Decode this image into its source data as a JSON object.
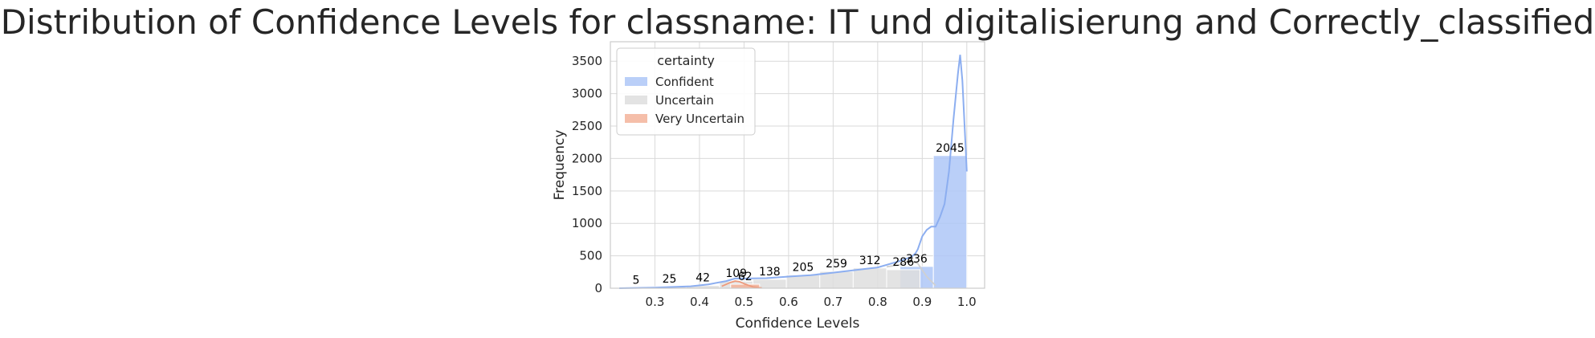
{
  "chart_data": {
    "type": "bar",
    "title": "Distribution of Confidence Levels for classname: IT und digitalisierung and Correctly_classified",
    "xlabel": "Confidence Levels",
    "ylabel": "Frequency",
    "xlim": [
      0.2,
      1.04
    ],
    "ylim": [
      0,
      3800
    ],
    "x_ticks": [
      0.3,
      0.4,
      0.5,
      0.6,
      0.7,
      0.8,
      0.9,
      1.0
    ],
    "x_tick_labels": [
      "0.3",
      "0.4",
      "0.5",
      "0.6",
      "0.7",
      "0.8",
      "0.9",
      "1.0"
    ],
    "y_ticks": [
      0,
      500,
      1000,
      1500,
      2000,
      2500,
      3000,
      3500
    ],
    "y_tick_labels": [
      "0",
      "500",
      "1000",
      "1500",
      "2000",
      "2500",
      "3000",
      "3500"
    ],
    "grid": true,
    "legend": {
      "title": "certainty",
      "placement": "top-left",
      "entries": [
        "Confident",
        "Uncertain",
        "Very Uncertain"
      ]
    },
    "colors": {
      "Confident": "#aec7f7",
      "Uncertain": "#dedede",
      "Very Uncertain": "#f3b39a",
      "kde_line": "#8caef0",
      "uncertain_kde": "#d0d0d0",
      "very_uncertain_kde": "#ee9a7c"
    },
    "series": [
      {
        "name": "Confident",
        "bins": [
          {
            "x0": 0.85,
            "x1": 0.925,
            "value": 336
          },
          {
            "x0": 0.925,
            "x1": 1.0,
            "value": 2045
          }
        ]
      },
      {
        "name": "Uncertain",
        "bins": [
          {
            "x0": 0.22,
            "x1": 0.295,
            "value": 5
          },
          {
            "x0": 0.295,
            "x1": 0.37,
            "value": 25
          },
          {
            "x0": 0.37,
            "x1": 0.445,
            "value": 42
          },
          {
            "x0": 0.445,
            "x1": 0.52,
            "value": 109
          },
          {
            "x0": 0.52,
            "x1": 0.595,
            "value": 138
          },
          {
            "x0": 0.595,
            "x1": 0.67,
            "value": 205
          },
          {
            "x0": 0.67,
            "x1": 0.745,
            "value": 259
          },
          {
            "x0": 0.745,
            "x1": 0.82,
            "value": 312
          },
          {
            "x0": 0.82,
            "x1": 0.895,
            "value": 286
          }
        ]
      },
      {
        "name": "Very Uncertain",
        "bins": [
          {
            "x0": 0.47,
            "x1": 0.535,
            "value": 62
          }
        ]
      }
    ],
    "kde": {
      "x": [
        0.22,
        0.3,
        0.38,
        0.42,
        0.46,
        0.48,
        0.5,
        0.55,
        0.6,
        0.65,
        0.7,
        0.75,
        0.8,
        0.85,
        0.875,
        0.885,
        0.89,
        0.9,
        0.91,
        0.92,
        0.93,
        0.94,
        0.95,
        0.96,
        0.97,
        0.98,
        0.985,
        0.99,
        1.0
      ],
      "y": [
        0,
        10,
        30,
        60,
        110,
        150,
        150,
        155,
        180,
        200,
        240,
        280,
        320,
        420,
        480,
        540,
        600,
        800,
        900,
        950,
        950,
        1100,
        1300,
        1800,
        2600,
        3300,
        3600,
        3200,
        1800
      ]
    },
    "uncertain_kde": {
      "x": [
        0.82,
        0.85,
        0.87,
        0.89,
        0.91,
        0.93
      ],
      "y": [
        330,
        360,
        420,
        380,
        180,
        40
      ]
    },
    "very_uncertain_kde": {
      "x": [
        0.45,
        0.47,
        0.48,
        0.49,
        0.5,
        0.52,
        0.54
      ],
      "y": [
        30,
        90,
        110,
        100,
        70,
        20,
        5
      ]
    }
  }
}
